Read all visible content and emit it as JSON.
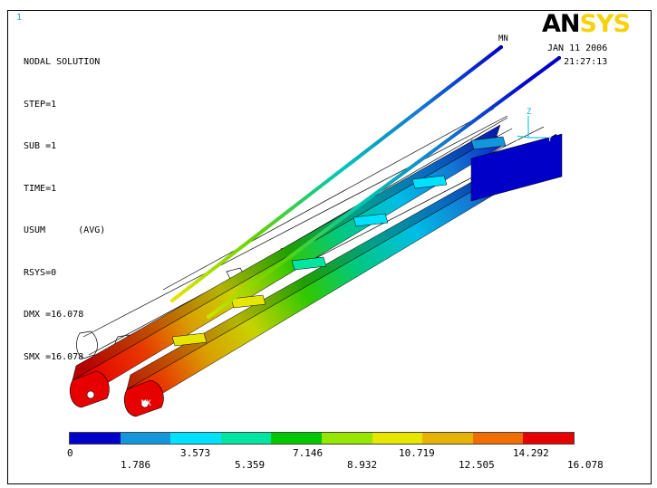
{
  "window_number": "1",
  "info": {
    "title": "NODAL SOLUTION",
    "lines": [
      "STEP=1",
      "SUB =1",
      "TIME=1",
      "USUM      (AVG)",
      "RSYS=0",
      "DMX =16.078",
      "SMX =16.078"
    ]
  },
  "logo": {
    "an": "AN",
    "sys": "SYS"
  },
  "date": "JAN 11 2006",
  "time": "21:27:13",
  "markers": {
    "mx": "MN",
    "mn": "MX"
  },
  "triad": {
    "z": "Z",
    "y": "Y",
    "x": "X"
  },
  "legend": {
    "colors": [
      "#0000c8",
      "#1496dc",
      "#00e1ff",
      "#00e6a0",
      "#00c800",
      "#96e600",
      "#e6e600",
      "#e6b400",
      "#f06e00",
      "#e60000"
    ],
    "ticks_top": [
      "0",
      "3.573",
      "7.146",
      "10.719",
      "14.292"
    ],
    "ticks_bottom": [
      "1.786",
      "5.359",
      "8.932",
      "12.505",
      "16.078"
    ]
  }
}
